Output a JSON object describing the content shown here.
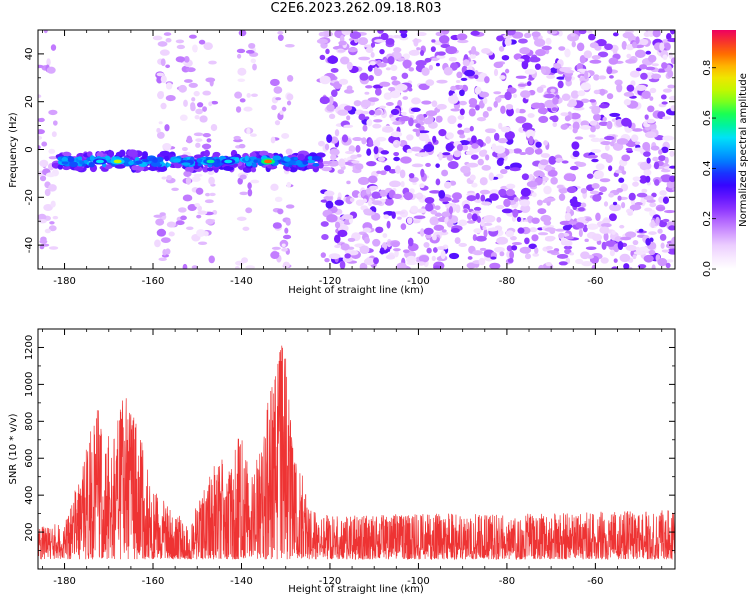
{
  "figure": {
    "title": "C2E6.2023.262.09.18.R03"
  },
  "colors": {
    "snr_line": "#ee3333",
    "colormap": [
      "#ffffff",
      "#f0d6ff",
      "#c27bff",
      "#7b1fff",
      "#2a00ff",
      "#0080ff",
      "#00e0ff",
      "#00ff60",
      "#b0ff00",
      "#ffe000",
      "#ff6000",
      "#ee0060"
    ]
  },
  "chart_data": [
    {
      "type": "heatmap",
      "xlabel": "Height of straight line (km)",
      "ylabel": "Frequency (Hz)",
      "xlim": [
        -186,
        -42
      ],
      "ylim": [
        -50,
        50
      ],
      "xticks": [
        -180,
        -160,
        -140,
        -120,
        -100,
        -80,
        -60
      ],
      "yticks": [
        -40,
        -20,
        0,
        20,
        40
      ],
      "colorbar": {
        "label": "Normalized spectral amplitude",
        "range": [
          0,
          0.95
        ],
        "ticks": [
          0.0,
          0.2,
          0.4,
          0.6,
          0.8
        ]
      },
      "features": [
        {
          "x_range": [
            -182,
            -122
          ],
          "freq_hz": -5,
          "max_amplitude": 0.95,
          "description": "narrow band of high amplitude"
        },
        {
          "x_range": [
            -122,
            -42
          ],
          "freq_hz_range": [
            -50,
            50
          ],
          "max_amplitude": 0.3,
          "description": "broadband low-level noise"
        }
      ]
    },
    {
      "type": "line",
      "xlabel": "Height of straight line (km)",
      "ylabel": "SNR (10 * v/v)",
      "xlim": [
        -186,
        -42
      ],
      "ylim": [
        0,
        1300
      ],
      "xticks": [
        -180,
        -160,
        -140,
        -120,
        -100,
        -80,
        -60
      ],
      "yticks": [
        200,
        400,
        600,
        800,
        1000,
        1200
      ],
      "series": [
        {
          "baseline": 150,
          "envelope": [
            {
              "x": -186,
              "y": 230
            },
            {
              "x": -180,
              "y": 250
            },
            {
              "x": -176,
              "y": 550
            },
            {
              "x": -173,
              "y": 950
            },
            {
              "x": -171,
              "y": 700
            },
            {
              "x": -168,
              "y": 850
            },
            {
              "x": -166,
              "y": 1000
            },
            {
              "x": -164,
              "y": 800
            },
            {
              "x": -162,
              "y": 650
            },
            {
              "x": -160,
              "y": 430
            },
            {
              "x": -156,
              "y": 330
            },
            {
              "x": -152,
              "y": 280
            },
            {
              "x": -148,
              "y": 450
            },
            {
              "x": -145,
              "y": 640
            },
            {
              "x": -143,
              "y": 520
            },
            {
              "x": -140,
              "y": 800
            },
            {
              "x": -138,
              "y": 480
            },
            {
              "x": -135,
              "y": 720
            },
            {
              "x": -132,
              "y": 1290
            },
            {
              "x": -130,
              "y": 1150
            },
            {
              "x": -128,
              "y": 650
            },
            {
              "x": -124,
              "y": 330
            },
            {
              "x": -120,
              "y": 290
            },
            {
              "x": -100,
              "y": 300
            },
            {
              "x": -80,
              "y": 300
            },
            {
              "x": -60,
              "y": 310
            },
            {
              "x": -42,
              "y": 320
            }
          ]
        }
      ]
    }
  ]
}
